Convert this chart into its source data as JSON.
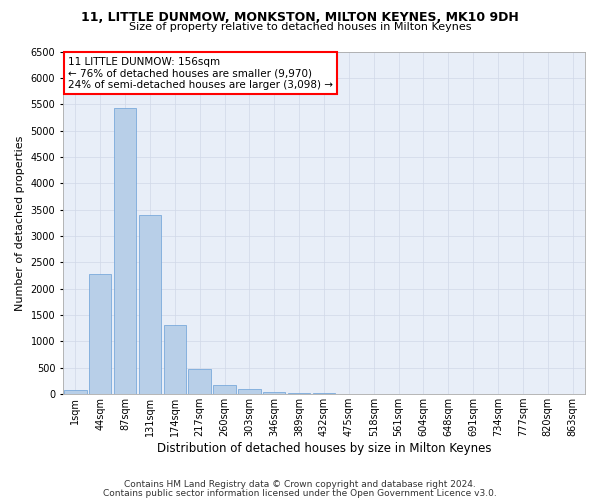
{
  "title1": "11, LITTLE DUNMOW, MONKSTON, MILTON KEYNES, MK10 9DH",
  "title2": "Size of property relative to detached houses in Milton Keynes",
  "xlabel": "Distribution of detached houses by size in Milton Keynes",
  "ylabel": "Number of detached properties",
  "footnote1": "Contains HM Land Registry data © Crown copyright and database right 2024.",
  "footnote2": "Contains public sector information licensed under the Open Government Licence v3.0.",
  "annotation_title": "11 LITTLE DUNMOW: 156sqm",
  "annotation_line2": "← 76% of detached houses are smaller (9,970)",
  "annotation_line3": "24% of semi-detached houses are larger (3,098) →",
  "bar_color": "#b8cfe8",
  "bar_edge_color": "#6a9fd8",
  "categories": [
    "1sqm",
    "44sqm",
    "87sqm",
    "131sqm",
    "174sqm",
    "217sqm",
    "260sqm",
    "303sqm",
    "346sqm",
    "389sqm",
    "432sqm",
    "475sqm",
    "518sqm",
    "561sqm",
    "604sqm",
    "648sqm",
    "691sqm",
    "734sqm",
    "777sqm",
    "820sqm",
    "863sqm"
  ],
  "values": [
    75,
    2280,
    5430,
    3390,
    1320,
    480,
    165,
    90,
    50,
    30,
    15,
    10,
    5,
    3,
    2,
    1,
    1,
    0,
    0,
    0,
    0
  ],
  "ylim": [
    0,
    6500
  ],
  "yticks": [
    0,
    500,
    1000,
    1500,
    2000,
    2500,
    3000,
    3500,
    4000,
    4500,
    5000,
    5500,
    6000,
    6500
  ],
  "bg_color": "#ffffff",
  "ax_bg_color": "#e8eef8",
  "grid_color": "#d0d8e8",
  "title1_fontsize": 9,
  "title2_fontsize": 8,
  "xlabel_fontsize": 8.5,
  "ylabel_fontsize": 8,
  "tick_fontsize": 7,
  "footnote_fontsize": 6.5,
  "annotation_fontsize": 7.5
}
